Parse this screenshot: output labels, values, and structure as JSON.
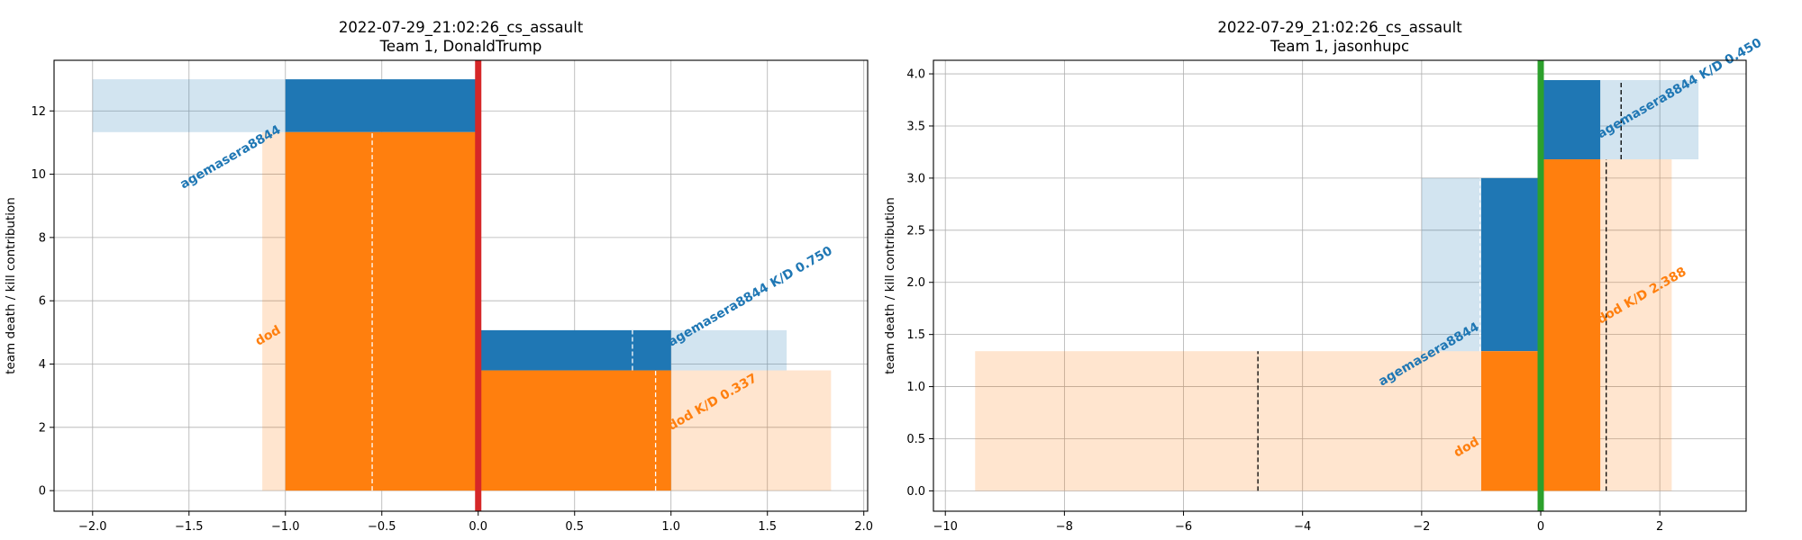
{
  "chart_data": [
    {
      "type": "bar",
      "title_lines": [
        "2022-07-29_21:02:26_cs_assault",
        "Team 1, DonaldTrump"
      ],
      "ylabel": "team death / kill contribution",
      "xlim": [
        -2.2,
        2.02
      ],
      "ylim": [
        -0.65,
        13.6
      ],
      "xticks": [
        -2.0,
        -1.5,
        -1.0,
        -0.5,
        0.0,
        0.5,
        1.0,
        1.5,
        2.0
      ],
      "xtick_labels": [
        "−2.0",
        "−1.5",
        "−1.0",
        "−0.5",
        "0.0",
        "0.5",
        "1.0",
        "1.5",
        "2.0"
      ],
      "yticks": [
        0,
        2,
        4,
        6,
        8,
        10,
        12
      ],
      "ytick_labels": [
        "0",
        "2",
        "4",
        "6",
        "8",
        "10",
        "12"
      ],
      "grid": true,
      "center_line": {
        "x": 0,
        "color": "#d62728"
      },
      "rects": [
        {
          "x0": -2.0,
          "x1": -1.0,
          "y0": 11.33,
          "y1": 13.0,
          "color": "#1f77b4",
          "alpha": 0.2
        },
        {
          "x0": -1.12,
          "x1": -1.0,
          "y0": 0,
          "y1": 11.33,
          "color": "#ff7f0e",
          "alpha": 0.2
        },
        {
          "x0": -1.0,
          "x1": 0.0,
          "y0": 11.33,
          "y1": 13.0,
          "color": "#1f77b4",
          "alpha": 1
        },
        {
          "x0": -1.0,
          "x1": 0.0,
          "y0": 0,
          "y1": 11.33,
          "color": "#ff7f0e",
          "alpha": 1
        },
        {
          "x0": 1.0,
          "x1": 1.6,
          "y0": 3.8,
          "y1": 5.07,
          "color": "#1f77b4",
          "alpha": 0.2
        },
        {
          "x0": 1.0,
          "x1": 1.83,
          "y0": 0,
          "y1": 3.8,
          "color": "#ff7f0e",
          "alpha": 0.2
        },
        {
          "x0": 0.0,
          "x1": 1.0,
          "y0": 3.8,
          "y1": 5.07,
          "color": "#1f77b4",
          "alpha": 1
        },
        {
          "x0": 0.0,
          "x1": 1.0,
          "y0": 0,
          "y1": 3.8,
          "color": "#ff7f0e",
          "alpha": 1
        }
      ],
      "dashes": [
        {
          "x": -0.55,
          "y0": 0,
          "y1": 11.33,
          "color": "#ffffff"
        },
        {
          "x": 0.8,
          "y0": 3.8,
          "y1": 5.07,
          "color": "#ffffff"
        },
        {
          "x": 0.92,
          "y0": 0,
          "y1": 3.8,
          "color": "#ffffff"
        }
      ],
      "labels": [
        {
          "text": "agemasera8844",
          "x": -1.02,
          "y": 11.33,
          "anchor": "end",
          "color": "#1f77b4"
        },
        {
          "text": "dod",
          "x": -1.02,
          "y": 5.0,
          "anchor": "end",
          "color": "#ff7f0e"
        },
        {
          "text": "agemasera8844 K/D 0.750",
          "x": 1.0,
          "y": 4.55,
          "anchor": "start",
          "color": "#1f77b4"
        },
        {
          "text": "dod K/D 0.337",
          "x": 1.0,
          "y": 1.9,
          "anchor": "start",
          "color": "#ff7f0e"
        }
      ]
    },
    {
      "type": "bar",
      "title_lines": [
        "2022-07-29_21:02:26_cs_assault",
        "Team 1, jasonhupc"
      ],
      "ylabel": "team death / kill contribution",
      "xlim": [
        -10.2,
        3.45
      ],
      "ylim": [
        -0.195,
        4.13
      ],
      "xticks": [
        -10,
        -8,
        -6,
        -4,
        -2,
        0,
        2
      ],
      "xtick_labels": [
        "−10",
        "−8",
        "−6",
        "−4",
        "−2",
        "0",
        "2"
      ],
      "yticks": [
        0.0,
        0.5,
        1.0,
        1.5,
        2.0,
        2.5,
        3.0,
        3.5,
        4.0
      ],
      "ytick_labels": [
        "0.0",
        "0.5",
        "1.0",
        "1.5",
        "2.0",
        "2.5",
        "3.0",
        "3.5",
        "4.0"
      ],
      "grid": true,
      "center_line": {
        "x": 0,
        "color": "#2ca02c"
      },
      "rects": [
        {
          "x0": -9.5,
          "x1": -1.0,
          "y0": 0,
          "y1": 1.34,
          "color": "#ff7f0e",
          "alpha": 0.2
        },
        {
          "x0": -2.0,
          "x1": -1.0,
          "y0": 1.34,
          "y1": 3.0,
          "color": "#1f77b4",
          "alpha": 0.2
        },
        {
          "x0": -1.0,
          "x1": 0.0,
          "y0": 1.34,
          "y1": 3.0,
          "color": "#1f77b4",
          "alpha": 1
        },
        {
          "x0": -1.0,
          "x1": 0.0,
          "y0": 0,
          "y1": 1.34,
          "color": "#ff7f0e",
          "alpha": 1
        },
        {
          "x0": 1.0,
          "x1": 2.65,
          "y0": 3.18,
          "y1": 3.94,
          "color": "#1f77b4",
          "alpha": 0.2
        },
        {
          "x0": 1.0,
          "x1": 2.2,
          "y0": 0,
          "y1": 3.18,
          "color": "#ff7f0e",
          "alpha": 0.2
        },
        {
          "x0": 0.0,
          "x1": 1.0,
          "y0": 3.18,
          "y1": 3.94,
          "color": "#1f77b4",
          "alpha": 1
        },
        {
          "x0": 0.0,
          "x1": 1.0,
          "y0": 0,
          "y1": 3.18,
          "color": "#ff7f0e",
          "alpha": 1
        }
      ],
      "dashes": [
        {
          "x": -4.75,
          "y0": 0,
          "y1": 1.34,
          "color": "#000000"
        },
        {
          "x": -1.02,
          "y0": 1.34,
          "y1": 3.0,
          "color": "#ffffff"
        },
        {
          "x": 1.35,
          "y0": 3.18,
          "y1": 3.94,
          "color": "#000000"
        },
        {
          "x": 1.1,
          "y0": 0,
          "y1": 3.18,
          "color": "#000000"
        }
      ],
      "labels": [
        {
          "text": "agemasera8844",
          "x": -1.02,
          "y": 1.55,
          "anchor": "end",
          "color": "#1f77b4"
        },
        {
          "text": "dod",
          "x": -1.02,
          "y": 0.45,
          "anchor": "end",
          "color": "#ff7f0e"
        },
        {
          "text": "agemasera8844 K/D 0.450",
          "x": 1.0,
          "y": 3.38,
          "anchor": "start",
          "color": "#1f77b4"
        },
        {
          "text": "dod K/D 2.388",
          "x": 1.0,
          "y": 1.6,
          "anchor": "start",
          "color": "#ff7f0e"
        }
      ]
    }
  ]
}
